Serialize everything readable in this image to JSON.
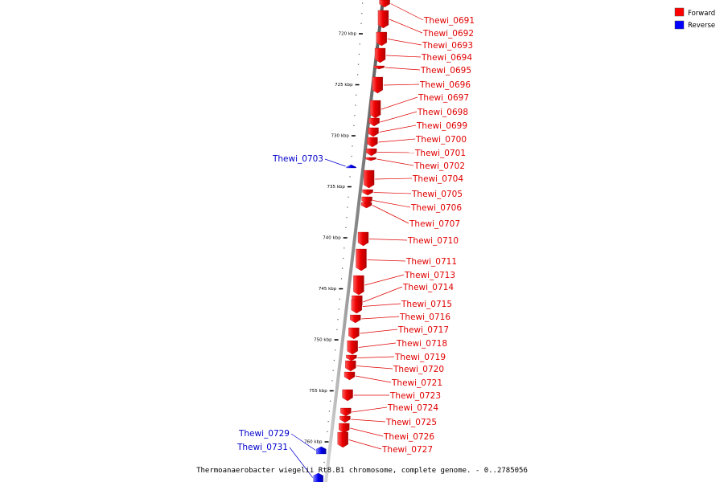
{
  "caption": "Thermoanaerobacter wiegelii Rt8.B1 chromosome, complete genome. - 0..2785056",
  "legend": [
    {
      "label": "Forward",
      "color": "#ff0000"
    },
    {
      "label": "Reverse",
      "color": "#0000ff"
    }
  ],
  "axis": {
    "unit": "kbp",
    "major_ticks": [
      {
        "value": 720,
        "label": "720 kbp"
      },
      {
        "value": 725,
        "label": "725 kbp"
      },
      {
        "value": 730,
        "label": "730 kbp"
      },
      {
        "value": 735,
        "label": "735 kbp"
      },
      {
        "value": 740,
        "label": "740 kbp"
      },
      {
        "value": 745,
        "label": "745 kbp"
      },
      {
        "value": 750,
        "label": "750 kbp"
      },
      {
        "value": 755,
        "label": "755 kbp"
      },
      {
        "value": 760,
        "label": "760 kbp"
      }
    ],
    "minor_step": 1
  },
  "genes": [
    {
      "name": "Thewi_0691",
      "strand": "forward"
    },
    {
      "name": "Thewi_0692",
      "strand": "forward"
    },
    {
      "name": "Thewi_0693",
      "strand": "forward"
    },
    {
      "name": "Thewi_0694",
      "strand": "forward"
    },
    {
      "name": "Thewi_0695",
      "strand": "forward"
    },
    {
      "name": "Thewi_0696",
      "strand": "forward"
    },
    {
      "name": "Thewi_0697",
      "strand": "forward"
    },
    {
      "name": "Thewi_0698",
      "strand": "forward"
    },
    {
      "name": "Thewi_0699",
      "strand": "forward"
    },
    {
      "name": "Thewi_0700",
      "strand": "forward"
    },
    {
      "name": "Thewi_0701",
      "strand": "forward"
    },
    {
      "name": "Thewi_0702",
      "strand": "forward"
    },
    {
      "name": "Thewi_0703",
      "strand": "reverse"
    },
    {
      "name": "Thewi_0704",
      "strand": "forward"
    },
    {
      "name": "Thewi_0705",
      "strand": "forward"
    },
    {
      "name": "Thewi_0706",
      "strand": "forward"
    },
    {
      "name": "Thewi_0707",
      "strand": "forward"
    },
    {
      "name": "Thewi_0710",
      "strand": "forward"
    },
    {
      "name": "Thewi_0711",
      "strand": "forward"
    },
    {
      "name": "Thewi_0713",
      "strand": "forward"
    },
    {
      "name": "Thewi_0714",
      "strand": "forward"
    },
    {
      "name": "Thewi_0715",
      "strand": "forward"
    },
    {
      "name": "Thewi_0716",
      "strand": "forward"
    },
    {
      "name": "Thewi_0717",
      "strand": "forward"
    },
    {
      "name": "Thewi_0718",
      "strand": "forward"
    },
    {
      "name": "Thewi_0719",
      "strand": "forward"
    },
    {
      "name": "Thewi_0720",
      "strand": "forward"
    },
    {
      "name": "Thewi_0721",
      "strand": "forward"
    },
    {
      "name": "Thewi_0723",
      "strand": "forward"
    },
    {
      "name": "Thewi_0724",
      "strand": "forward"
    },
    {
      "name": "Thewi_0725",
      "strand": "forward"
    },
    {
      "name": "Thewi_0726",
      "strand": "forward"
    },
    {
      "name": "Thewi_0727",
      "strand": "forward"
    },
    {
      "name": "Thewi_0729",
      "strand": "reverse"
    },
    {
      "name": "Thewi_0731",
      "strand": "reverse"
    }
  ]
}
